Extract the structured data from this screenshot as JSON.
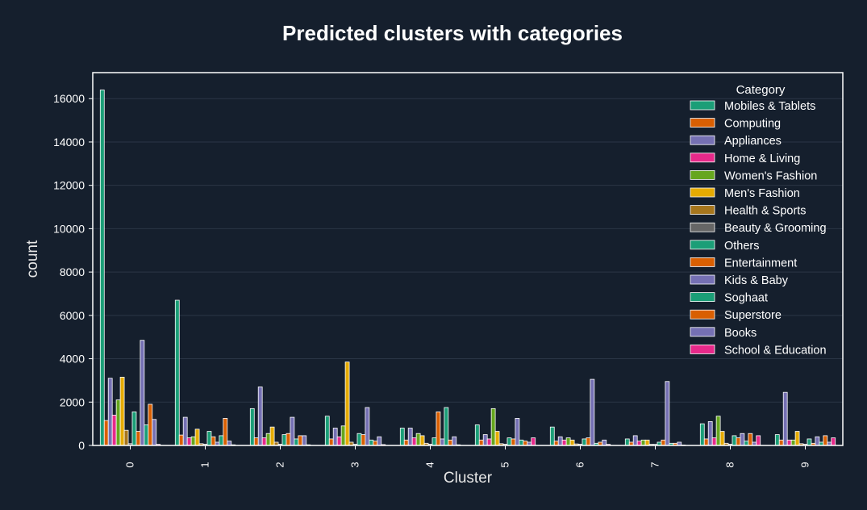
{
  "chart_data": {
    "type": "bar",
    "title": "Predicted clusters with categories",
    "xlabel": "Cluster",
    "ylabel": "count",
    "ylim": [
      0,
      17200
    ],
    "yticks": [
      0,
      2000,
      4000,
      6000,
      8000,
      10000,
      12000,
      14000,
      16000
    ],
    "grid": "horizontal",
    "legend_title": "Category",
    "legend_position": "top-right",
    "categories": [
      "0",
      "1",
      "2",
      "3",
      "4",
      "5",
      "6",
      "7",
      "8",
      "9"
    ],
    "series": [
      {
        "name": "Mobiles & Tablets",
        "color": "#1b9e77",
        "values": [
          16400,
          6700,
          1700,
          1350,
          800,
          950,
          850,
          300,
          1000,
          500
        ]
      },
      {
        "name": "Computing",
        "color": "#d95f02",
        "values": [
          1150,
          480,
          350,
          300,
          250,
          250,
          200,
          150,
          300,
          250
        ]
      },
      {
        "name": "Appliances",
        "color": "#7570b3",
        "values": [
          3100,
          1300,
          2700,
          800,
          800,
          500,
          400,
          450,
          1100,
          2450
        ]
      },
      {
        "name": "Home & Living",
        "color": "#e7298a",
        "values": [
          1400,
          350,
          350,
          400,
          350,
          300,
          250,
          200,
          350,
          250
        ]
      },
      {
        "name": "Women's Fashion",
        "color": "#66a61e",
        "values": [
          2100,
          400,
          550,
          900,
          550,
          1700,
          350,
          250,
          1350,
          250
        ]
      },
      {
        "name": "Men's Fashion",
        "color": "#e6ab02",
        "values": [
          3150,
          750,
          850,
          3850,
          450,
          650,
          250,
          250,
          650,
          650
        ]
      },
      {
        "name": "Health & Sports",
        "color": "#a6761d",
        "values": [
          700,
          80,
          150,
          150,
          100,
          80,
          70,
          50,
          100,
          80
        ]
      },
      {
        "name": "Beauty & Grooming",
        "color": "#666666",
        "values": [
          80,
          60,
          60,
          60,
          60,
          60,
          60,
          50,
          60,
          60
        ]
      },
      {
        "name": "Others",
        "color": "#1b9e77",
        "values": [
          1550,
          650,
          500,
          550,
          350,
          350,
          300,
          150,
          450,
          300
        ]
      },
      {
        "name": "Entertainment",
        "color": "#d95f02",
        "values": [
          650,
          400,
          550,
          500,
          1550,
          300,
          350,
          250,
          350,
          100
        ]
      },
      {
        "name": "Kids & Baby",
        "color": "#7570b3",
        "values": [
          4850,
          150,
          1300,
          1750,
          300,
          1250,
          3050,
          2950,
          550,
          400
        ]
      },
      {
        "name": "Soghaat",
        "color": "#1b9e77",
        "values": [
          950,
          450,
          300,
          250,
          1750,
          250,
          100,
          100,
          200,
          150
        ]
      },
      {
        "name": "Superstore",
        "color": "#d95f02",
        "values": [
          1900,
          1250,
          450,
          200,
          250,
          200,
          150,
          100,
          550,
          450
        ]
      },
      {
        "name": "Books",
        "color": "#7570b3",
        "values": [
          1200,
          200,
          450,
          400,
          400,
          150,
          250,
          150,
          150,
          150
        ]
      },
      {
        "name": "School & Education",
        "color": "#e7298a",
        "values": [
          50,
          30,
          30,
          40,
          30,
          350,
          50,
          20,
          450,
          350
        ]
      }
    ]
  }
}
